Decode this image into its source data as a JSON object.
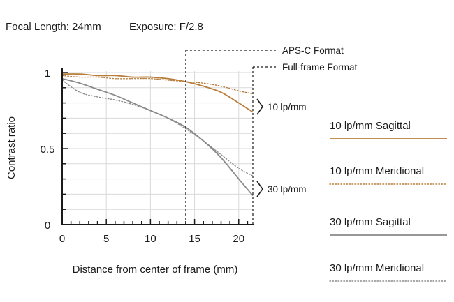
{
  "header": {
    "focal": "Focal Length: 24mm",
    "exposure": "Exposure: F/2.8"
  },
  "chart_data": {
    "type": "line",
    "xlabel": "Distance from center of frame (mm)",
    "ylabel": "Contrast ratio",
    "xlim": [
      0,
      21.6
    ],
    "ylim": [
      0,
      1
    ],
    "xticks": [
      "0",
      "5",
      "10",
      "15",
      "20"
    ],
    "yticks": [
      "0",
      "0.5",
      "1"
    ],
    "grid": true,
    "markers": [
      {
        "label": "APS-C Format",
        "x": 14.0
      },
      {
        "label": "Full-frame Format",
        "x": 21.6
      }
    ],
    "groups": [
      {
        "label": "10 lp/mm"
      },
      {
        "label": "30 lp/mm"
      }
    ],
    "series": [
      {
        "name": "10 lp/mm Sagittal",
        "color": "#b87d3a",
        "dash": "solid",
        "x": [
          0,
          2,
          4,
          6,
          8,
          10,
          12,
          14,
          16,
          18,
          20,
          21.6
        ],
        "y": [
          0.99,
          0.99,
          0.98,
          0.98,
          0.97,
          0.97,
          0.96,
          0.94,
          0.91,
          0.87,
          0.8,
          0.74
        ]
      },
      {
        "name": "10 lp/mm Meridional",
        "color": "#b87d3a",
        "dash": "dotted",
        "x": [
          0,
          2,
          4,
          6,
          8,
          10,
          12,
          14,
          16,
          18,
          20,
          21.6
        ],
        "y": [
          0.98,
          0.97,
          0.97,
          0.96,
          0.96,
          0.96,
          0.95,
          0.94,
          0.93,
          0.91,
          0.88,
          0.86
        ]
      },
      {
        "name": "30 lp/mm Sagittal",
        "color": "#8a8a8a",
        "dash": "solid",
        "x": [
          0,
          2,
          4,
          6,
          8,
          10,
          12,
          14,
          16,
          18,
          20,
          21.6
        ],
        "y": [
          0.96,
          0.93,
          0.89,
          0.85,
          0.8,
          0.75,
          0.7,
          0.64,
          0.55,
          0.44,
          0.3,
          0.19
        ]
      },
      {
        "name": "30 lp/mm Meridional",
        "color": "#8a8a8a",
        "dash": "dotted",
        "x": [
          0,
          2,
          4,
          6,
          8,
          10,
          12,
          14,
          16,
          18,
          20,
          21.6
        ],
        "y": [
          0.95,
          0.87,
          0.84,
          0.82,
          0.79,
          0.75,
          0.7,
          0.63,
          0.55,
          0.46,
          0.37,
          0.32
        ]
      }
    ]
  }
}
